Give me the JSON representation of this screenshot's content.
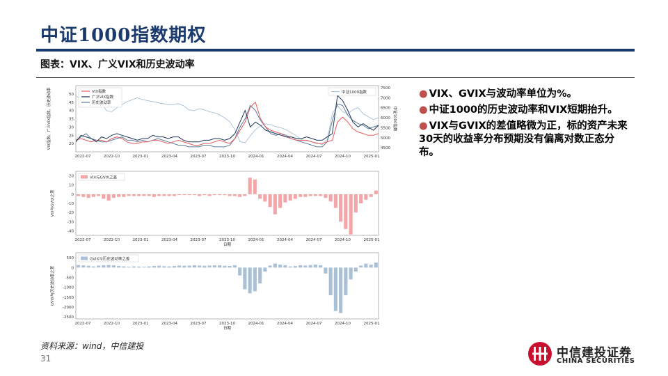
{
  "page": {
    "title": "中证1000指数期权",
    "subtitle": "图表：VIX、广义VIX和历史波动率",
    "source": "资料来源：wind，中信建投",
    "page_number": "31",
    "logo_cn": "中信建投证券",
    "logo_en": "CHINA SECURITIES",
    "accent_color": "#1b3b6f",
    "bullet_color": "#c0504d"
  },
  "bullets": [
    "VIX、GVIX与波动率单位为%。",
    "中证1000的历史波动率和VIX短期抬升。",
    "VIX与GVIX的差值略微为正，标的资产未来30天的收益率分布预期没有偏离对数正态分布。"
  ],
  "chart_data": [
    {
      "type": "line",
      "x_ticks": [
        "2022-07",
        "2022-10",
        "2023-01",
        "2023-04",
        "2023-07",
        "2023-10",
        "2024-01",
        "2024-04",
        "2024-07",
        "2024-10",
        "2025-01"
      ],
      "y_left_label": "VIX指数、广义VIX指数、历史波动率",
      "y_right_label": "中证1000指数",
      "y_left_ticks": [
        20,
        25,
        30,
        35,
        40,
        45,
        50
      ],
      "y_left_lim": [
        15,
        55
      ],
      "y_right_ticks": [
        4500,
        5000,
        5500,
        6000,
        6500,
        7000,
        7500
      ],
      "y_right_lim": [
        4300,
        7600
      ],
      "legend_left": [
        "VIX指数",
        "广义VIX指数",
        "历史波动率"
      ],
      "legend_right": [
        "中证1000指数"
      ],
      "colors": {
        "vix": "#e8585b",
        "gvix": "#1d3557",
        "hv": "#5b7b9e",
        "index": "#a8bed3"
      },
      "series": [
        {
          "name": "VIX指数",
          "axis": "left",
          "values": [
            22,
            23,
            22,
            21,
            22,
            22,
            21,
            23,
            24,
            23,
            21,
            20,
            20,
            21,
            21,
            22,
            22,
            21,
            20,
            21,
            22,
            21,
            20,
            19,
            19,
            20,
            20,
            21,
            22,
            21,
            20,
            23,
            28,
            33,
            42,
            45,
            35,
            30,
            28,
            27,
            26,
            24,
            23,
            22,
            22,
            22,
            21,
            20,
            20,
            21,
            22,
            33,
            36,
            33,
            29,
            27,
            26,
            25,
            25,
            26
          ]
        },
        {
          "name": "广义VIX指数",
          "axis": "left",
          "values": [
            21,
            25,
            24,
            23,
            21,
            24,
            23,
            25,
            26,
            25,
            24,
            23,
            22,
            23,
            23,
            25,
            24,
            24,
            23,
            24,
            24,
            22,
            21,
            21,
            21,
            22,
            22,
            23,
            23,
            22,
            23,
            26,
            33,
            40,
            30,
            33,
            31,
            28,
            27,
            26,
            25,
            24,
            24,
            23,
            23,
            24,
            23,
            22,
            22,
            24,
            26,
            49,
            46,
            40,
            33,
            30,
            32,
            30,
            28,
            31
          ]
        },
        {
          "name": "历史波动率",
          "axis": "left",
          "values": [
            22,
            24,
            26,
            23,
            22,
            21,
            21,
            22,
            23,
            24,
            22,
            22,
            21,
            22,
            21,
            22,
            23,
            22,
            21,
            20,
            19,
            19,
            18,
            18,
            18,
            19,
            19,
            18,
            18,
            18,
            19,
            23,
            30,
            35,
            43,
            40,
            34,
            30,
            26,
            25,
            26,
            25,
            23,
            22,
            21,
            20,
            19,
            18,
            18,
            21,
            34,
            44,
            43,
            37,
            34,
            32,
            31,
            29,
            30,
            31
          ]
        },
        {
          "name": "中证1000指数",
          "axis": "right",
          "values": [
            7100,
            6900,
            6600,
            6550,
            6700,
            6700,
            6350,
            6300,
            6500,
            6650,
            6800,
            6900,
            7000,
            6900,
            6850,
            6800,
            6750,
            6700,
            6650,
            6650,
            6700,
            6600,
            6400,
            6350,
            6450,
            6400,
            6300,
            6250,
            6150,
            6000,
            5800,
            5400,
            4800,
            4750,
            5100,
            5400,
            5600,
            5700,
            5650,
            5550,
            5500,
            5400,
            5250,
            5100,
            4900,
            4850,
            4800,
            4750,
            4650,
            4900,
            6200,
            6600,
            6300,
            6200,
            6400,
            6500,
            6200,
            6050,
            5900,
            6000
          ]
        }
      ]
    },
    {
      "type": "bar",
      "name": "VIX与GVIX之差",
      "ylabel": "VIX与GVIX之差",
      "xlabel": "日期",
      "y_ticks": [
        -40,
        -30,
        -20,
        -10,
        0,
        10,
        20
      ],
      "y_lim": [
        -45,
        25
      ],
      "x_ticks": [
        "2022-07",
        "2022-10",
        "2023-01",
        "2023-04",
        "2023-07",
        "2023-10",
        "2024-01",
        "2024-04",
        "2024-07",
        "2024-10",
        "2025-01"
      ],
      "color": "#f2a6a8",
      "values": [
        -2,
        -3,
        -4,
        -3,
        -2,
        -5,
        -7,
        -4,
        -3,
        -3,
        -2,
        -2,
        -2,
        -2,
        -2,
        -3,
        -2,
        -2,
        -2,
        -2,
        -1,
        -1,
        -1,
        -1,
        -2,
        -1,
        -2,
        -1,
        -1,
        -1,
        -2,
        -2,
        -3,
        -2,
        18,
        16,
        -5,
        -8,
        -14,
        -22,
        -15,
        -9,
        -7,
        -5,
        -3,
        -3,
        -2,
        -2,
        -2,
        -4,
        -8,
        -15,
        -30,
        -38,
        -44,
        -20,
        -10,
        -6,
        -3,
        4
      ]
    },
    {
      "type": "bar",
      "name": "GVIX与历史波动率之差",
      "ylabel": "GVIX与历史波动率之差",
      "xlabel": "日期",
      "y_ticks": [
        -2500,
        -2000,
        -1500,
        -1000,
        -500,
        0,
        500
      ],
      "y_lim": [
        -2600,
        750
      ],
      "x_ticks": [
        "2022-07",
        "2022-10",
        "2023-01",
        "2023-04",
        "2023-07",
        "2023-10",
        "2024-01",
        "2024-04",
        "2024-07",
        "2024-10",
        "2025-01"
      ],
      "color": "#a9c0d6",
      "values": [
        130,
        110,
        90,
        60,
        100,
        120,
        130,
        110,
        80,
        60,
        40,
        60,
        50,
        40,
        60,
        80,
        90,
        70,
        60,
        80,
        100,
        90,
        100,
        120,
        100,
        90,
        100,
        110,
        120,
        90,
        80,
        120,
        -400,
        -1100,
        -1300,
        -1200,
        -800,
        -200,
        100,
        200,
        150,
        120,
        60,
        80,
        120,
        100,
        130,
        150,
        120,
        -300,
        -1400,
        -2200,
        -2300,
        -1400,
        -600,
        -200,
        100,
        200,
        150,
        250
      ]
    }
  ]
}
